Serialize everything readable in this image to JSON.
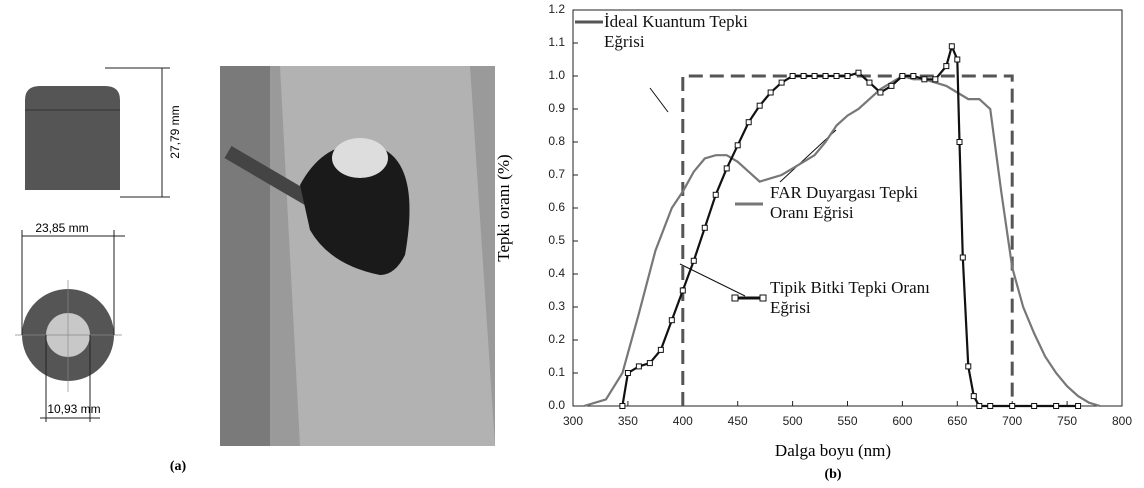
{
  "chart_data": {
    "type": "line",
    "x_label": "Dalga boyu (nm)",
    "y_label": "Tepki oranı (%)",
    "caption": "(b)",
    "xlim": [
      300,
      800
    ],
    "xticks": [
      300,
      350,
      400,
      450,
      500,
      550,
      600,
      650,
      700,
      750,
      800
    ],
    "ylim": [
      0,
      1.2
    ],
    "yticks": [
      {
        "value": 0,
        "label": "0.0"
      },
      0.1,
      0.2,
      0.3,
      0.4,
      0.5,
      0.6,
      0.7,
      0.8,
      0.9,
      {
        "value": 1,
        "label": "1.0"
      },
      1.1,
      1.2
    ],
    "series": [
      {
        "name": "İdeal Kuantum Tepki Eğrisi",
        "color": "#555555",
        "dashed": true,
        "x": [
          400,
          400,
          700,
          700
        ],
        "values": [
          0,
          1,
          1,
          0
        ]
      },
      {
        "name": "FAR Duyargası Tepki Oranı Eğrisi",
        "color": "#777777",
        "x": [
          310,
          330,
          345,
          360,
          375,
          390,
          400,
          410,
          420,
          430,
          440,
          450,
          460,
          470,
          480,
          490,
          500,
          510,
          520,
          530,
          540,
          550,
          560,
          570,
          580,
          590,
          600,
          610,
          620,
          630,
          640,
          650,
          660,
          670,
          680,
          690,
          700,
          710,
          720,
          730,
          740,
          750,
          760,
          770,
          780
        ],
        "values": [
          0,
          0.02,
          0.1,
          0.28,
          0.47,
          0.6,
          0.65,
          0.71,
          0.75,
          0.76,
          0.76,
          0.74,
          0.71,
          0.68,
          0.69,
          0.7,
          0.72,
          0.74,
          0.76,
          0.8,
          0.85,
          0.88,
          0.9,
          0.93,
          0.96,
          0.98,
          1.0,
          0.99,
          0.99,
          0.98,
          0.97,
          0.95,
          0.93,
          0.93,
          0.9,
          0.65,
          0.42,
          0.3,
          0.22,
          0.15,
          0.1,
          0.06,
          0.03,
          0.01,
          0
        ]
      },
      {
        "name": "Tipik Bitki Tepki Oranı Eğrisi",
        "color": "#111111",
        "marker": "square",
        "x": [
          345,
          350,
          360,
          370,
          380,
          390,
          400,
          410,
          420,
          430,
          440,
          450,
          460,
          470,
          480,
          490,
          500,
          510,
          520,
          530,
          540,
          550,
          560,
          570,
          580,
          590,
          600,
          610,
          620,
          630,
          640,
          645,
          650,
          652,
          655,
          660,
          665,
          670,
          680,
          700,
          720,
          740,
          760
        ],
        "values": [
          0,
          0.1,
          0.12,
          0.13,
          0.17,
          0.26,
          0.35,
          0.44,
          0.54,
          0.64,
          0.72,
          0.79,
          0.86,
          0.91,
          0.95,
          0.98,
          1.0,
          1.0,
          1.0,
          1.0,
          1.0,
          1.0,
          1.01,
          0.98,
          0.95,
          0.97,
          1.0,
          1.0,
          0.99,
          0.99,
          1.03,
          1.09,
          1.05,
          0.8,
          0.45,
          0.12,
          0.03,
          0,
          0,
          0,
          0,
          0,
          0
        ]
      }
    ]
  },
  "figure_a": {
    "dimensions": [
      "27,79 mm",
      "23,85 mm",
      "10,93 mm"
    ],
    "caption": "(a)"
  }
}
